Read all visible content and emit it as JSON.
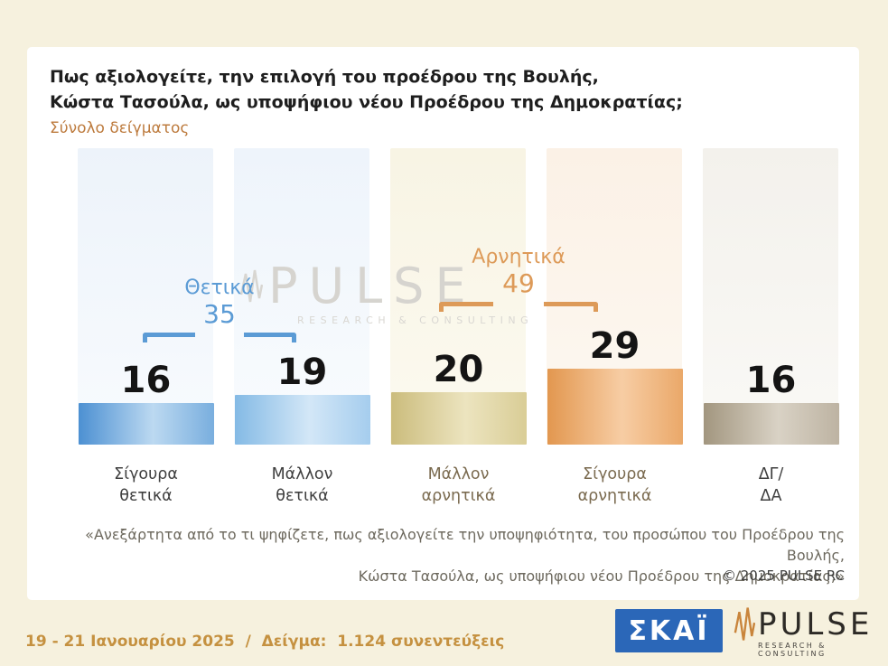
{
  "header": {
    "title_line1": "Πως αξιολογείτε, την επιλογή του προέδρου της Βουλής,",
    "title_line2": "Κώστα Τασούλα, ως υποψήφιου νέου Προέδρου της Δημοκρατίας;",
    "subtitle": "Σύνολο δείγματος"
  },
  "chart_data": {
    "type": "bar",
    "title": "Πως αξιολογείτε, την επιλογή του προέδρου της Βουλής, Κώστα Τασούλα, ως υποψήφιου νέου Προέδρου της Δημοκρατίας;",
    "categories": [
      "Σίγουρα\nθετικά",
      "Μάλλον\nθετικά",
      "Μάλλον\nαρνητικά",
      "Σίγουρα\nαρνητικά",
      "ΔΓ/\nΔΑ"
    ],
    "values": [
      16,
      19,
      20,
      29,
      16
    ],
    "groups": [
      {
        "label": "Θετικά",
        "value": 35,
        "spans": [
          0,
          1
        ],
        "color": "#5b9bd5"
      },
      {
        "label": "Αρνητικά",
        "value": 49,
        "spans": [
          2,
          3
        ],
        "color": "#dd9a58"
      }
    ],
    "bar_colors": [
      [
        "#4c90d2",
        "#bcd9f1",
        "#79aede"
      ],
      [
        "#84bae5",
        "#d3e7f7",
        "#a5cdee"
      ],
      [
        "#cbbc7c",
        "#ece4bf",
        "#d9cd96"
      ],
      [
        "#e2974f",
        "#f7cda4",
        "#eaa869"
      ],
      [
        "#a2967f",
        "#d9d2c5",
        "#bdb3a2"
      ]
    ],
    "band_colors": [
      [
        "#edf3fa",
        "#f8fbfe"
      ],
      [
        "#eef4fb",
        "#f9fcfe"
      ],
      [
        "#f8f4e4",
        "#fcfaf0"
      ],
      [
        "#fbf1e6",
        "#fdf8f1"
      ],
      [
        "#f3f1ec",
        "#faf9f6"
      ]
    ],
    "label_colors": [
      "#3f3f3f",
      "#3f3f3f",
      "#7a6a4f",
      "#7a6a4f",
      "#3f3f3f"
    ],
    "ylim": [
      0,
      100
    ],
    "grid": false,
    "legend_position": "none"
  },
  "watermark": {
    "text": "PULSE",
    "sub": "RESEARCH & CONSULTING"
  },
  "footnote": {
    "line1": "«Ανεξάρτητα από το τι ψηφίζετε, πως αξιολογείτε την υποψηφιότητα, του προσώπου του Προέδρου της Βουλής,",
    "line2": "Κώστα Τασούλα, ως υποψήφιου νέου Προέδρου της Δημοκρατίας;»",
    "copyright": "©  2025  PULSE RC"
  },
  "footer": {
    "survey_info": "19 - 21 Ιανουαρίου 2025  /  Δείγμα:  1.124 συνεντεύξεις",
    "skai_logo_text": "ΣΚΑΪ",
    "pulse_logo_text": "PULSE",
    "pulse_logo_sub": "RESEARCH & CONSULTING"
  },
  "colors": {
    "background": "#f6f1de",
    "card": "#ffffff",
    "positive_accent": "#5b9bd5",
    "negative_accent": "#dd9a58",
    "subtitle_accent": "#bd7b3e",
    "footer_accent": "#c59140",
    "skai_blue": "#2b67b8",
    "pulse_orange": "#c9853c"
  },
  "icons": {
    "waveform": "waveform-icon"
  }
}
